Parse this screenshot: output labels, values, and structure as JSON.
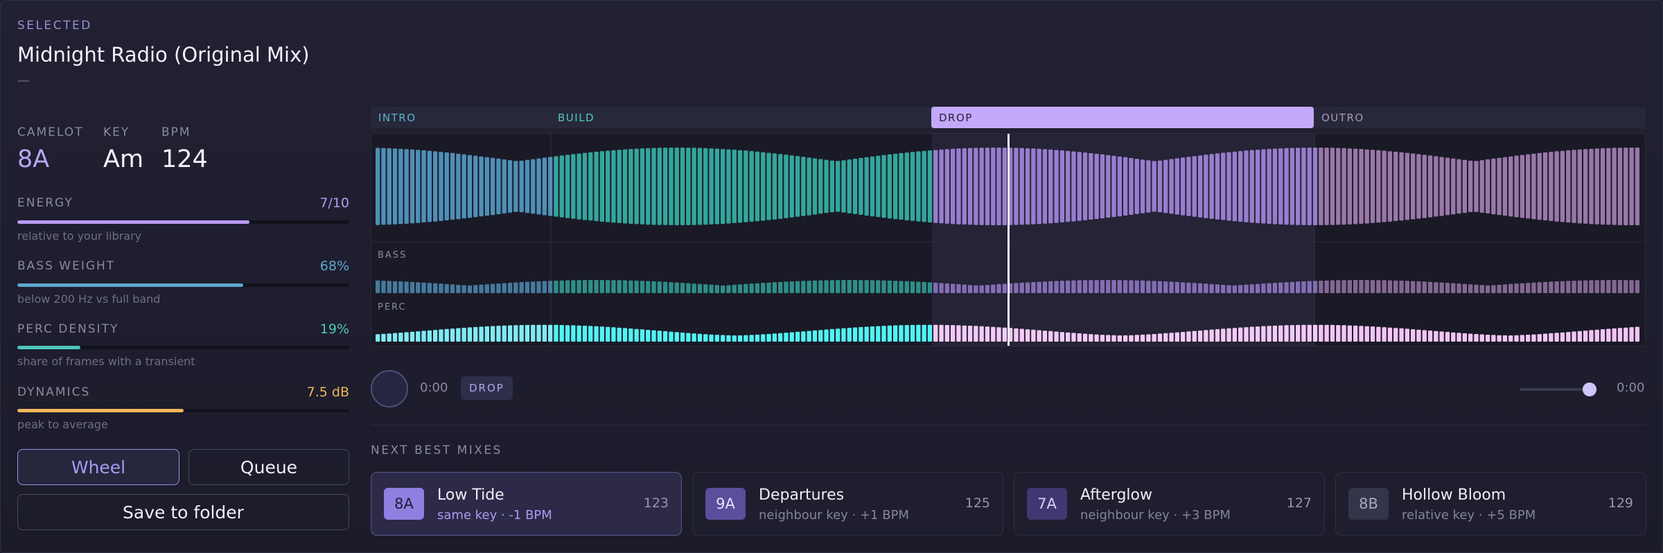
{
  "header": {
    "eyebrow": "SELECTED",
    "title": "Midnight Radio (Original Mix)",
    "subtitle": "—"
  },
  "meta": {
    "camelot_label": "CAMELOT",
    "camelot": "8A",
    "key_label": "KEY",
    "key": "Am",
    "bpm_label": "BPM",
    "bpm": "124"
  },
  "stats": [
    {
      "label": "ENERGY",
      "value": "7/10",
      "fraction": 0.7,
      "sub": "relative to your library",
      "color": "#b89bf2"
    },
    {
      "label": "BASS WEIGHT",
      "value": "68%",
      "fraction": 0.68,
      "sub": "below 200 Hz vs full band",
      "color": "#5ea6cf"
    },
    {
      "label": "PERC DENSITY",
      "value": "19%",
      "fraction": 0.19,
      "sub": "share of frames with a transient",
      "color": "#4ec8bd"
    },
    {
      "label": "DYNAMICS",
      "value": "7.5 dB",
      "fraction": 0.5,
      "sub": "peak to average",
      "color": "#f0b85a"
    }
  ],
  "buttons": {
    "wheel": "Wheel",
    "queue": "Queue",
    "save": "Save to folder"
  },
  "sections": [
    {
      "label": "INTRO",
      "color": "#5ab4cf"
    },
    {
      "label": "BUILD",
      "color": "#4ec8bd"
    },
    {
      "label": "DROP",
      "color": "#26213d"
    },
    {
      "label": "OUTRO",
      "color": "#a49bb8"
    }
  ],
  "lanes": {
    "bass": "BASS",
    "perc": "PERC"
  },
  "colors": {
    "intro": "#5aa4d0",
    "build": "#39c0b2",
    "drop": "#ab8ee8",
    "outro": "#b08ac0",
    "playhead": "#f2f0ff"
  },
  "transport": {
    "time_current": "0:00",
    "marker": "DROP",
    "time_total": "0:00",
    "zoom": 0.9
  },
  "mixes_label": "NEXT BEST MIXES",
  "mixes": [
    {
      "key": "8A",
      "title": "Low Tide",
      "sub": "same key · -1 BPM",
      "bpm": "123"
    },
    {
      "key": "9A",
      "title": "Departures",
      "sub": "neighbour key · +1 BPM",
      "bpm": "125"
    },
    {
      "key": "7A",
      "title": "Afterglow",
      "sub": "neighbour key · +3 BPM",
      "bpm": "127"
    },
    {
      "key": "8B",
      "title": "Hollow Bloom",
      "sub": "relative key · +5 BPM",
      "bpm": "129"
    }
  ]
}
